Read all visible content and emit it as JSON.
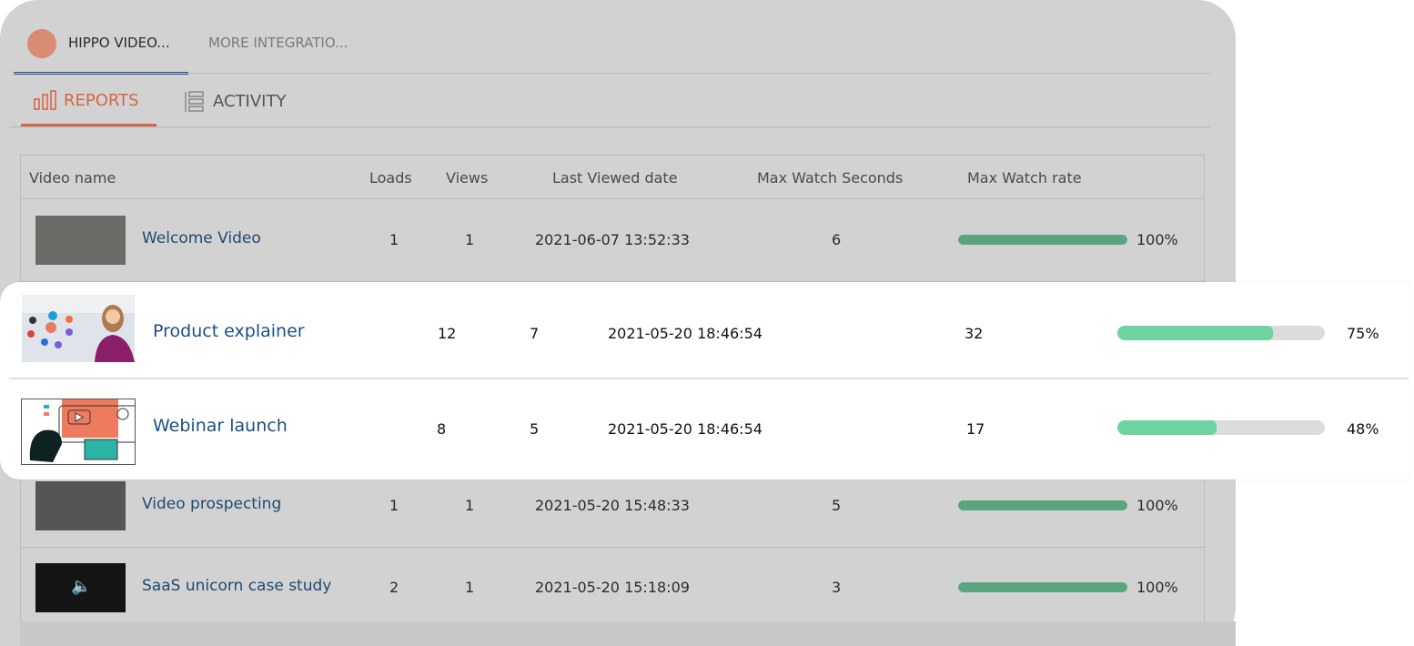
{
  "tabs": {
    "integration": "HIPPO VIDEO...",
    "more": "MORE INTEGRATIO..."
  },
  "subtabs": {
    "reports": "REPORTS",
    "activity": "ACTIVITY"
  },
  "columns": [
    "Video name",
    "Loads",
    "Views",
    "Last Viewed date",
    "Max Watch Seconds",
    "Max Watch rate"
  ],
  "rows": [
    {
      "name": "Welcome Video",
      "loads": "1",
      "views": "1",
      "date": "2021-06-07 13:52:33",
      "seconds": "6",
      "rate": "100%",
      "rate_value": 100,
      "highlighted": false
    },
    {
      "name": "Product explainer",
      "loads": "12",
      "views": "7",
      "date": "2021-05-20 18:46:54",
      "seconds": "32",
      "rate": "75%",
      "rate_value": 75,
      "highlighted": true
    },
    {
      "name": "Webinar launch",
      "loads": "8",
      "views": "5",
      "date": "2021-05-20 18:46:54",
      "seconds": "17",
      "rate": "48%",
      "rate_value": 48,
      "highlighted": true
    },
    {
      "name": "Video prospecting",
      "loads": "1",
      "views": "1",
      "date": "2021-05-20 15:48:33",
      "seconds": "5",
      "rate": "100%",
      "rate_value": 100,
      "highlighted": false
    },
    {
      "name": "SaaS unicorn case study",
      "loads": "2",
      "views": "1",
      "date": "2021-05-20 15:18:09",
      "seconds": "3",
      "rate": "100%",
      "rate_value": 100,
      "highlighted": false
    }
  ],
  "colors": {
    "accent_tab": "#2a4f9c",
    "reports": "#d4674a",
    "bar_fill": "#5aa57f",
    "bar_fill_highlight": "#6dd3a0",
    "link": "#1d4f82"
  }
}
